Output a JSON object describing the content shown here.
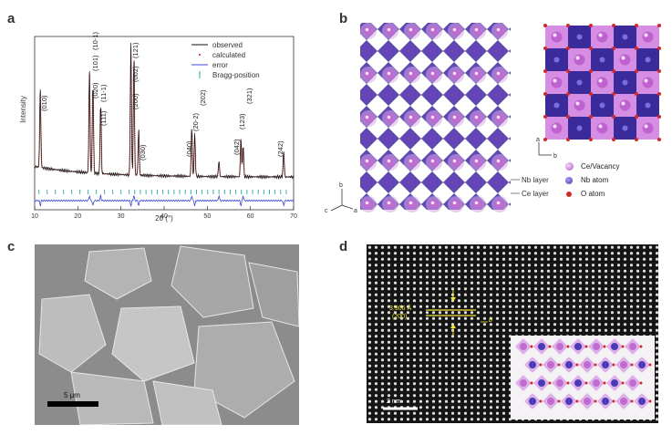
{
  "panels": {
    "a": {
      "letter": "a",
      "ylabel": "Intensity",
      "xlabel": "2θ (°)",
      "xticks": [
        "10",
        "20",
        "30",
        "40",
        "50",
        "60",
        "70"
      ],
      "legend": [
        {
          "label": "observed",
          "color": "#111111"
        },
        {
          "label": "calculated",
          "color": "#e24a4a"
        },
        {
          "label": "error",
          "color": "#3a4bd8"
        },
        {
          "label": "Bragg-position",
          "color": "#2aa79b"
        }
      ],
      "peak_labels": [
        "(010)",
        "(020)",
        "(101)",
        "(10-1)",
        "(111)",
        "(11-1)",
        "(200)",
        "(002)",
        "(121)",
        "(030)",
        "(040)",
        "(20-2)",
        "(202)",
        "(042)",
        "(123)",
        "(321)",
        "(242)"
      ]
    },
    "b": {
      "letter": "b",
      "layers": [
        "Nb layer",
        "Ce layer"
      ],
      "legend": [
        {
          "label": "Ce/Vacancy",
          "color": "#b455c8"
        },
        {
          "label": "Nb atom",
          "color": "#4a3db5"
        },
        {
          "label": "O atom",
          "color": "#d12a2a"
        }
      ],
      "axes_left": [
        "b",
        "c",
        "a"
      ],
      "axes_right": [
        "a",
        "b"
      ]
    },
    "c": {
      "letter": "c",
      "scalebar": "5 μm"
    },
    "d": {
      "letter": "d",
      "d_spacing": "3.906 Å",
      "plane": "(200)",
      "scalebar": "2 nm",
      "axis": "b"
    }
  },
  "chart_data": {
    "type": "line",
    "title": "",
    "xlabel": "2θ (°)",
    "ylabel": "Intensity",
    "xlim": [
      10,
      70
    ],
    "series": [
      {
        "name": "observed",
        "x": [
          11.3,
          22.7,
          23.5,
          25.3,
          32.3,
          33.0,
          34.1,
          46.4,
          47.1,
          52.7,
          57.8,
          58.3,
          67.7
        ],
        "y": [
          60,
          78,
          70,
          55,
          100,
          92,
          35,
          38,
          32,
          12,
          30,
          25,
          20
        ]
      },
      {
        "name": "calculated",
        "x": [
          11.3,
          22.7,
          23.5,
          25.3,
          32.3,
          33.0,
          34.1,
          46.4,
          47.1,
          52.7,
          57.8,
          58.3,
          67.7
        ],
        "y": [
          58,
          76,
          69,
          54,
          98,
          90,
          34,
          37,
          31,
          11,
          29,
          24,
          19
        ]
      }
    ]
  }
}
